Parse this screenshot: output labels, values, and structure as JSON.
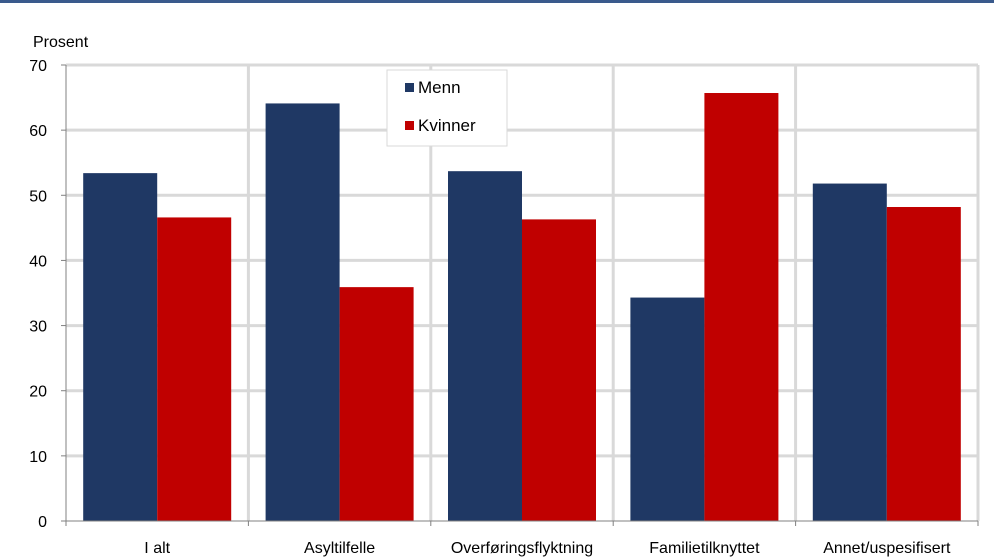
{
  "chart_data": {
    "type": "bar",
    "ylabel": "Prosent",
    "xlabel": "",
    "ylim": [
      0,
      70
    ],
    "yticks": [
      0,
      10,
      20,
      30,
      40,
      50,
      60,
      70
    ],
    "categories": [
      "I alt",
      "Asyltilfelle",
      "Overføringsflyktning",
      "Familietilknyttet",
      "Annet/uspesifisert"
    ],
    "series": [
      {
        "name": "Menn",
        "color": "#1f3864",
        "values": [
          53.4,
          64.1,
          53.7,
          34.3,
          51.8
        ]
      },
      {
        "name": "Kvinner",
        "color": "#c00000",
        "values": [
          46.6,
          35.9,
          46.3,
          65.7,
          48.2
        ]
      }
    ],
    "grid": true,
    "legend_position": "top-center"
  },
  "colors": {
    "top_rule": "#3a5a8c",
    "grid": "#d9d9d9",
    "axis": "#808080"
  }
}
